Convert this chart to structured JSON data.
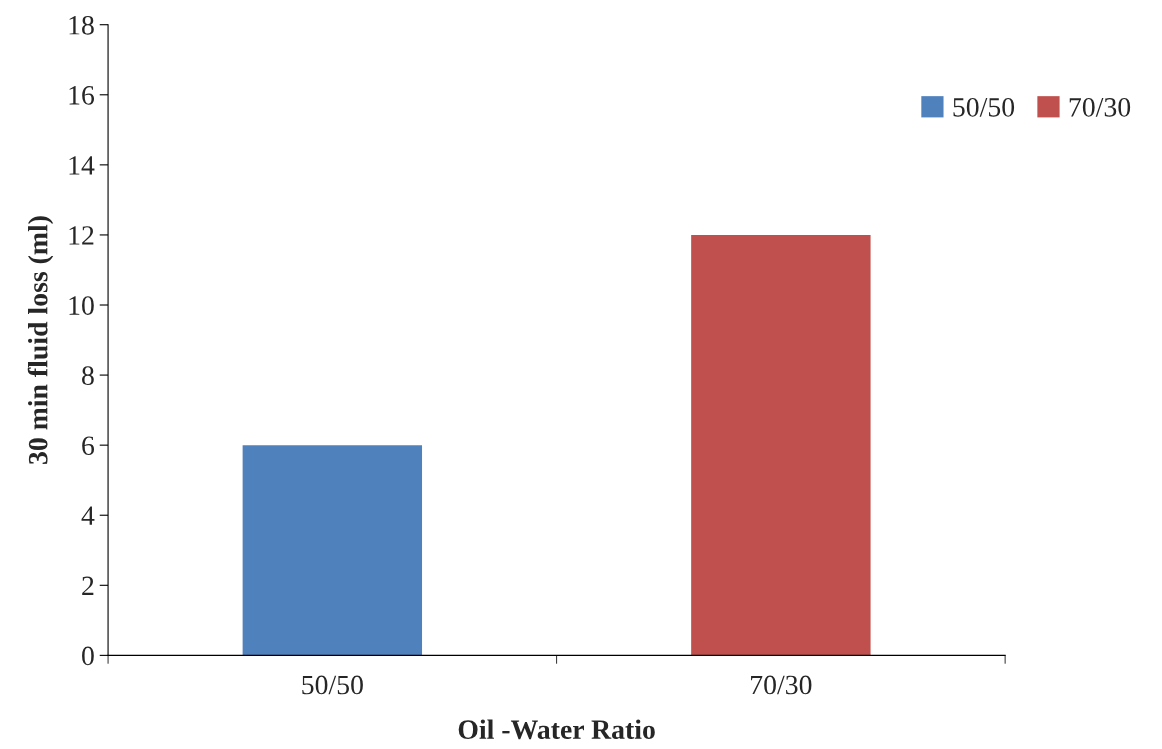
{
  "chart_data": {
    "type": "bar",
    "xlabel": "Oil -Water Ratio",
    "ylabel": "30 min fluid loss (ml)",
    "categories": [
      "50/50",
      "70/30"
    ],
    "series": [
      {
        "name": "50/50",
        "color": "#4f81bd",
        "values": [
          6,
          null
        ]
      },
      {
        "name": "70/30",
        "color": "#c0504d",
        "values": [
          null,
          12
        ]
      }
    ],
    "ylim": [
      0,
      18
    ],
    "yticks": [
      0,
      2,
      4,
      6,
      8,
      10,
      12,
      14,
      16,
      18
    ],
    "grid": false,
    "legend": "top right"
  }
}
